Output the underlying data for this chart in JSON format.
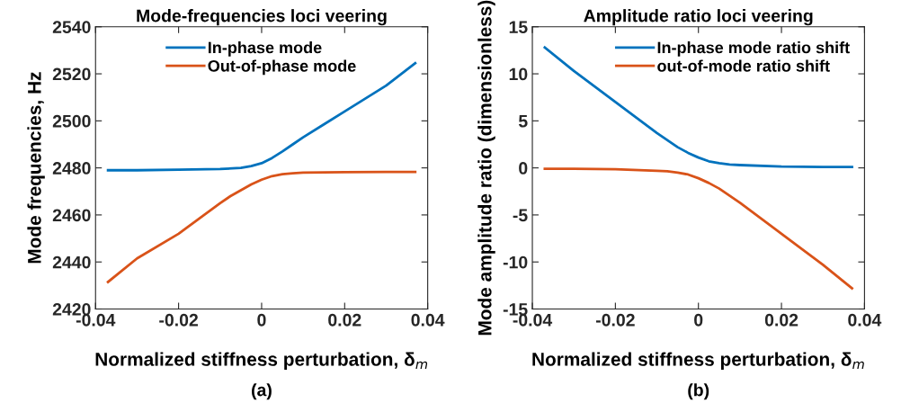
{
  "chart_data": [
    {
      "type": "line",
      "title": "Mode-frequencies loci veering",
      "xlabel": "Normalized stiffness perturbation, δ$_{m}$",
      "ylabel": "Mode frequencies, Hz",
      "annotations": [
        "(a)"
      ],
      "xlim": [
        -0.04,
        0.04
      ],
      "xticks": [
        -0.04,
        -0.02,
        0,
        0.02,
        0.04
      ],
      "ylim": [
        2420,
        2540
      ],
      "yticks": [
        2420,
        2440,
        2460,
        2480,
        2500,
        2520,
        2540
      ],
      "grid": false,
      "legend": "top",
      "series": [
        {
          "name": "In-phase mode",
          "color": "#0072bd",
          "x": [
            -0.037,
            -0.03,
            -0.02,
            -0.01,
            -0.005,
            -0.0025,
            0,
            0.0025,
            0.005,
            0.0075,
            0.01,
            0.015,
            0.02,
            0.03,
            0.037
          ],
          "values": [
            2479,
            2479,
            2479.2,
            2479.5,
            2480,
            2480.8,
            2482,
            2484.2,
            2487,
            2490,
            2493,
            2498.5,
            2504,
            2515,
            2524.5
          ]
        },
        {
          "name": "Out-of-phase mode",
          "color": "#d95319",
          "x": [
            -0.037,
            -0.03,
            -0.02,
            -0.01,
            -0.0075,
            -0.005,
            -0.0025,
            0,
            0.0025,
            0.005,
            0.0075,
            0.01,
            0.02,
            0.03,
            0.037
          ],
          "values": [
            2431.5,
            2441.5,
            2452,
            2465,
            2468,
            2470.5,
            2473,
            2475,
            2476.5,
            2477.3,
            2477.7,
            2478,
            2478.2,
            2478.3,
            2478.3
          ]
        }
      ]
    },
    {
      "type": "line",
      "title": "Amplitude ratio loci veering",
      "xlabel": "Normalized stiffness perturbation, δ$_{m}$",
      "ylabel": "Mode amplitude ratio (dimensionless)",
      "annotations": [
        "(b)"
      ],
      "xlim": [
        -0.04,
        0.04
      ],
      "xticks": [
        -0.04,
        -0.02,
        0,
        0.02,
        0.04
      ],
      "ylim": [
        -15,
        15
      ],
      "yticks": [
        -15,
        -10,
        -5,
        0,
        5,
        10,
        15
      ],
      "grid": false,
      "legend": "top right",
      "series": [
        {
          "name": "In-phase mode ratio shift",
          "color": "#0072bd",
          "x": [
            -0.037,
            -0.03,
            -0.02,
            -0.01,
            -0.005,
            -0.0025,
            0,
            0.0025,
            0.005,
            0.0075,
            0.01,
            0.02,
            0.03,
            0.037
          ],
          "values": [
            12.8,
            10.3,
            7,
            3.7,
            2.2,
            1.6,
            1.1,
            0.7,
            0.5,
            0.35,
            0.3,
            0.15,
            0.1,
            0.1
          ]
        },
        {
          "name": "out-of-mode ratio shift",
          "color": "#d95319",
          "x": [
            -0.037,
            -0.03,
            -0.02,
            -0.01,
            -0.0075,
            -0.005,
            -0.0025,
            0,
            0.0025,
            0.005,
            0.01,
            0.02,
            0.03,
            0.037
          ],
          "values": [
            -0.1,
            -0.1,
            -0.15,
            -0.3,
            -0.35,
            -0.5,
            -0.7,
            -1.1,
            -1.6,
            -2.2,
            -3.7,
            -7,
            -10.3,
            -12.8
          ]
        }
      ]
    }
  ]
}
